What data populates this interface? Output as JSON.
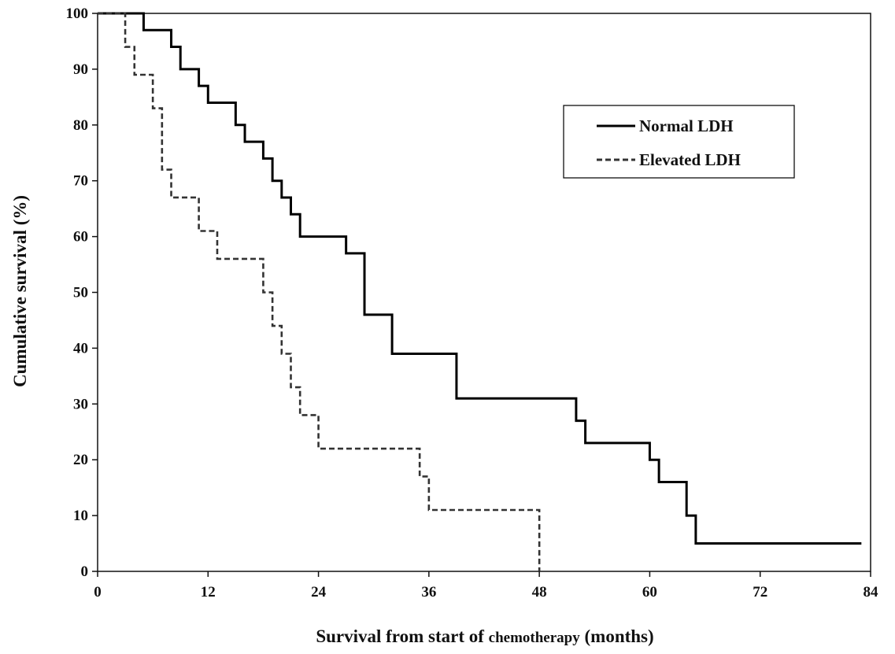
{
  "chart_data": {
    "type": "line",
    "step": true,
    "title": "",
    "xlabel_parts": [
      "Survival from start of ",
      "chemotherapy",
      " (months)"
    ],
    "ylabel": "Cumulative survival (%)",
    "xlim": [
      0,
      84
    ],
    "ylim": [
      0,
      100
    ],
    "xticks": [
      0,
      12,
      24,
      36,
      48,
      60,
      72,
      84
    ],
    "yticks": [
      0,
      10,
      20,
      30,
      40,
      50,
      60,
      70,
      80,
      90,
      100
    ],
    "grid": false,
    "legend_position": "top-right",
    "series": [
      {
        "name": "Normal LDH",
        "style": "solid",
        "color": "#000000",
        "x": [
          0,
          5,
          8,
          9,
          11,
          12,
          15,
          16,
          18,
          19,
          20,
          21,
          22,
          27,
          29,
          32,
          39,
          52,
          53,
          60,
          61,
          64,
          65,
          83
        ],
        "y": [
          100,
          97,
          94,
          90,
          87,
          84,
          80,
          77,
          74,
          70,
          67,
          64,
          60,
          57,
          46,
          39,
          31,
          27,
          23,
          20,
          16,
          10,
          5,
          5
        ]
      },
      {
        "name": "Elevated LDH",
        "style": "dashed",
        "color": "#333333",
        "x": [
          0,
          3,
          4,
          6,
          7,
          8,
          11,
          13,
          18,
          19,
          20,
          21,
          22,
          24,
          35,
          36,
          48,
          48
        ],
        "y": [
          100,
          94,
          89,
          83,
          72,
          67,
          61,
          56,
          50,
          44,
          39,
          33,
          28,
          22,
          17,
          11,
          11,
          0
        ]
      }
    ]
  }
}
